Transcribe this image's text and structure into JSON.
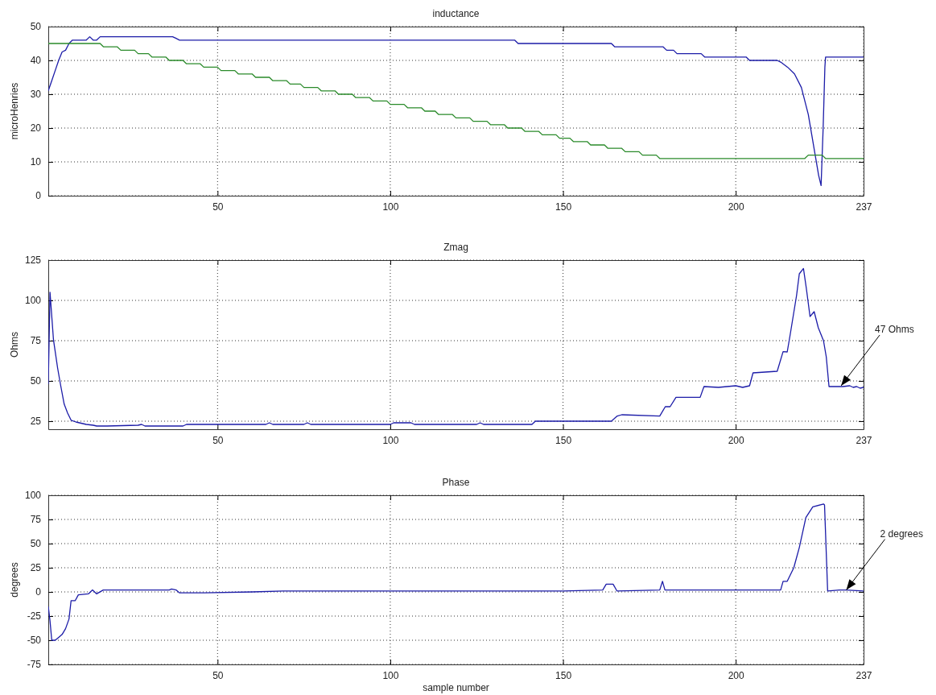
{
  "chart_data": [
    {
      "type": "line",
      "title": "inductance",
      "ylabel": "microHenries",
      "xlim": [
        1,
        237
      ],
      "xticks": [
        50,
        100,
        150,
        200,
        237
      ],
      "ylim": [
        0,
        50
      ],
      "yticks": [
        0,
        10,
        20,
        30,
        40,
        50
      ],
      "grid": true,
      "series": [
        {
          "color": "#1c1ca8",
          "x": [
            1,
            2,
            3,
            4,
            5,
            6,
            7,
            8,
            12,
            13,
            14,
            15,
            16,
            37,
            38,
            39,
            136,
            137,
            164,
            165,
            179,
            180,
            182,
            183,
            190,
            191,
            203,
            204,
            212,
            213,
            215,
            217,
            219,
            221,
            222,
            223,
            224,
            224.7,
            225.3,
            225.8,
            226,
            237
          ],
          "values": [
            31,
            34,
            37,
            40,
            42.5,
            43,
            45,
            46,
            46,
            47,
            46,
            46,
            47,
            47,
            46.5,
            46,
            46,
            45,
            45,
            44,
            44,
            43,
            43,
            42,
            42,
            41,
            41,
            40,
            40,
            39.5,
            38,
            36,
            32,
            24,
            18,
            12,
            6,
            3,
            20,
            38,
            41,
            41
          ]
        },
        {
          "color": "#2a8a2a",
          "x": [
            1,
            16,
            17,
            21,
            22,
            26,
            27,
            30,
            31,
            35,
            36,
            40,
            41,
            45,
            46,
            50,
            51,
            55,
            56,
            60,
            61,
            65,
            66,
            70,
            71,
            74,
            75,
            79,
            80,
            84,
            85,
            89,
            90,
            94,
            95,
            99,
            100,
            104,
            105,
            109,
            110,
            113,
            114,
            118,
            119,
            123,
            124,
            128,
            129,
            133,
            134,
            138,
            139,
            143,
            144,
            148,
            149,
            152,
            153,
            157,
            158,
            162,
            163,
            167,
            168,
            172,
            173,
            177,
            178,
            220,
            221,
            225,
            226,
            237
          ],
          "values": [
            45,
            45,
            44,
            44,
            43,
            43,
            42,
            42,
            41,
            41,
            40,
            40,
            39,
            39,
            38,
            38,
            37,
            37,
            36,
            36,
            35,
            35,
            34,
            34,
            33,
            33,
            32,
            32,
            31,
            31,
            30,
            30,
            29,
            29,
            28,
            28,
            27,
            27,
            26,
            26,
            25,
            25,
            24,
            24,
            23,
            23,
            22,
            22,
            21,
            21,
            20,
            20,
            19,
            19,
            18,
            18,
            17,
            17,
            16,
            16,
            15,
            15,
            14,
            14,
            13,
            13,
            12,
            12,
            11,
            11,
            12,
            12,
            11,
            11
          ]
        }
      ]
    },
    {
      "type": "line",
      "title": "Zmag",
      "ylabel": "Ohms",
      "xlim": [
        1,
        237
      ],
      "xticks": [
        50,
        100,
        150,
        200,
        237
      ],
      "ylim": [
        20,
        125
      ],
      "yticks": [
        25,
        50,
        75,
        100,
        125
      ],
      "grid": true,
      "annotations": [
        {
          "text": "47 Ohms",
          "x": 230.5,
          "y": 47
        }
      ],
      "series": [
        {
          "color": "#1c1ca8",
          "x": [
            1,
            1.5,
            2.5,
            3.7,
            4.6,
            5.6,
            6.6,
            7.6,
            9,
            10,
            12,
            14,
            15,
            18,
            27,
            28,
            29,
            40,
            41,
            64,
            65,
            66,
            75,
            76,
            77,
            100,
            101,
            106,
            107,
            108,
            125,
            126,
            127,
            141,
            142,
            164,
            165.7,
            167,
            178,
            179.6,
            181,
            182.7,
            189.7,
            190.8,
            195,
            200,
            202,
            204,
            205,
            212,
            213.7,
            214.9,
            215.7,
            217.6,
            218.4,
            219.6,
            220.4,
            221.5,
            222.7,
            223.9,
            225.4,
            226.2,
            227,
            231,
            233,
            234,
            235,
            236,
            237
          ],
          "values": [
            48,
            105,
            75.6,
            58,
            47,
            35.6,
            30,
            25.6,
            24.5,
            24,
            23,
            22.5,
            22,
            22,
            22.5,
            23,
            22,
            22,
            23,
            23,
            24,
            23,
            23,
            24,
            23,
            23,
            24,
            24,
            23,
            23,
            23,
            24,
            23,
            23,
            25,
            25,
            28.2,
            29,
            28.2,
            34,
            34,
            39.8,
            39.8,
            46.5,
            46,
            47,
            46,
            47,
            55,
            56,
            68.2,
            68,
            78,
            103,
            116.5,
            119.8,
            108,
            90,
            93,
            83,
            75,
            65,
            46.5,
            46.5,
            47,
            46,
            46.5,
            45.5,
            46
          ]
        }
      ]
    },
    {
      "type": "line",
      "title": "Phase",
      "xlabel": "sample number",
      "ylabel": "degrees",
      "xlim": [
        1,
        237
      ],
      "xticks": [
        50,
        100,
        150,
        200,
        237
      ],
      "ylim": [
        -75,
        100
      ],
      "yticks": [
        -75,
        -50,
        -25,
        0,
        25,
        50,
        75,
        100
      ],
      "grid": true,
      "annotations": [
        {
          "text": "2 degrees",
          "x": 232,
          "y": 2
        }
      ],
      "series": [
        {
          "color": "#1c1ca8",
          "x": [
            1,
            1.5,
            2,
            3,
            4,
            5,
            6,
            7,
            7.6,
            8.8,
            9.7,
            12.6,
            13.8,
            15,
            16.9,
            36,
            36.7,
            38,
            39,
            45,
            60,
            69,
            100,
            150,
            161.5,
            162.5,
            164.5,
            165.6,
            178,
            178.8,
            179.5,
            190,
            200,
            213,
            213.7,
            214.9,
            216.8,
            218.4,
            220.3,
            222.3,
            225.4,
            225.7,
            226.6,
            230,
            232,
            237
          ],
          "values": [
            -15,
            -30,
            -50,
            -50,
            -47,
            -44,
            -38,
            -28,
            -9,
            -9,
            -3,
            -2,
            2,
            -2,
            2,
            2,
            3,
            2,
            -1,
            -1,
            0,
            1,
            1,
            1,
            2,
            8,
            8,
            1,
            2,
            11,
            2,
            2,
            2,
            2,
            11,
            11,
            25,
            46,
            77,
            88,
            91,
            90,
            1,
            2,
            2,
            1
          ]
        }
      ]
    }
  ]
}
